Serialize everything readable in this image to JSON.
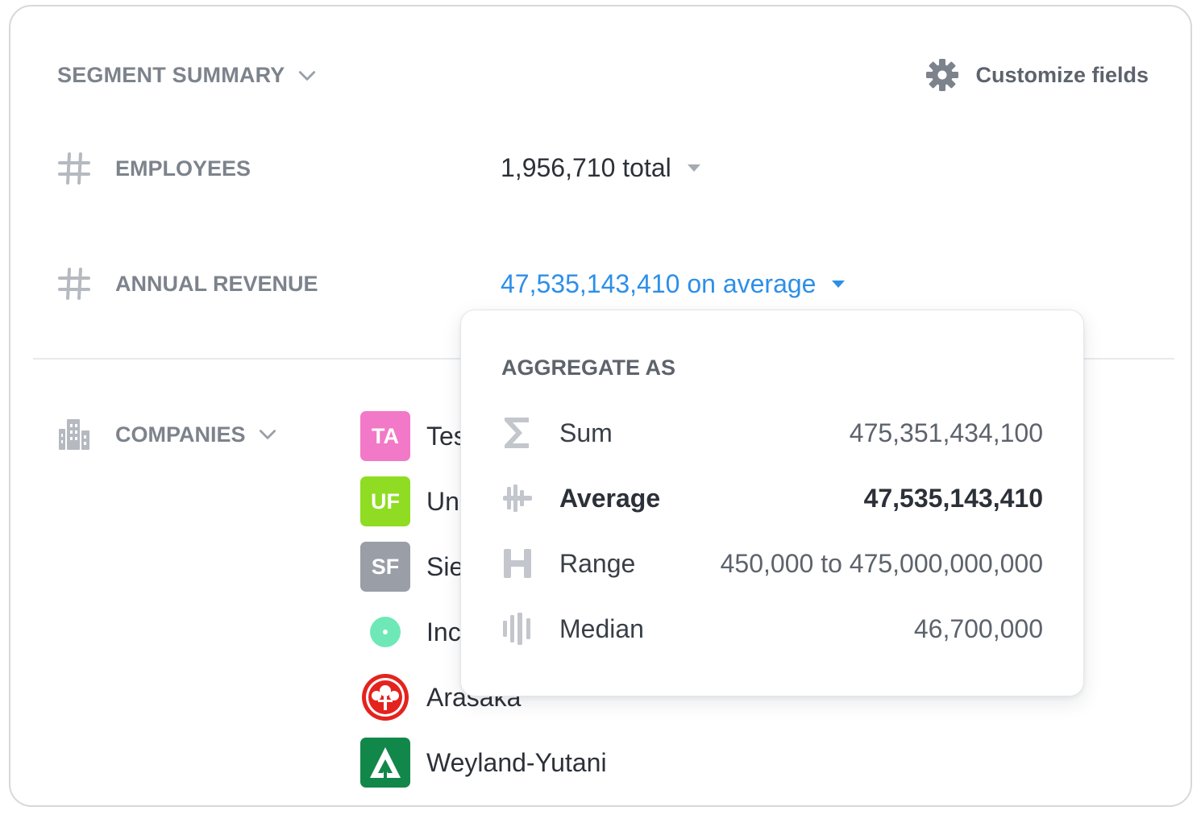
{
  "header": {
    "title": "SEGMENT SUMMARY",
    "customize_label": "Customize fields"
  },
  "fields": [
    {
      "label": "EMPLOYEES",
      "value": "1,956,710 total"
    },
    {
      "label": "ANNUAL REVENUE",
      "value": "47,535,143,410 on average"
    }
  ],
  "companies": {
    "label": "COMPANIES",
    "items": [
      {
        "name": "Tes",
        "initials": "TA",
        "color": "#f279c7"
      },
      {
        "name": "Un",
        "initials": "UF",
        "color": "#8fdc22"
      },
      {
        "name": "Sie",
        "initials": "SF",
        "color": "#9a9ea7"
      },
      {
        "name": "Inc",
        "initials": "",
        "color": "#6ee8b6"
      },
      {
        "name": "Arasaka",
        "initials": "",
        "color": "#e4231f"
      },
      {
        "name": "Weyland-Yutani",
        "initials": "",
        "color": "#12874a"
      }
    ]
  },
  "aggregate": {
    "header": "AGGREGATE AS",
    "options": [
      {
        "label": "Sum",
        "value": "475,351,434,100",
        "icon": "sigma-icon",
        "selected": false
      },
      {
        "label": "Average",
        "value": "47,535,143,410",
        "icon": "average-icon",
        "selected": true
      },
      {
        "label": "Range",
        "value": "450,000 to 475,000,000,000",
        "icon": "range-icon",
        "selected": false
      },
      {
        "label": "Median",
        "value": "46,700,000",
        "icon": "median-icon",
        "selected": false
      }
    ]
  },
  "colors": {
    "accent": "#2d8fe8",
    "muted_text": "#7d838c",
    "border": "#d6d8dc"
  }
}
